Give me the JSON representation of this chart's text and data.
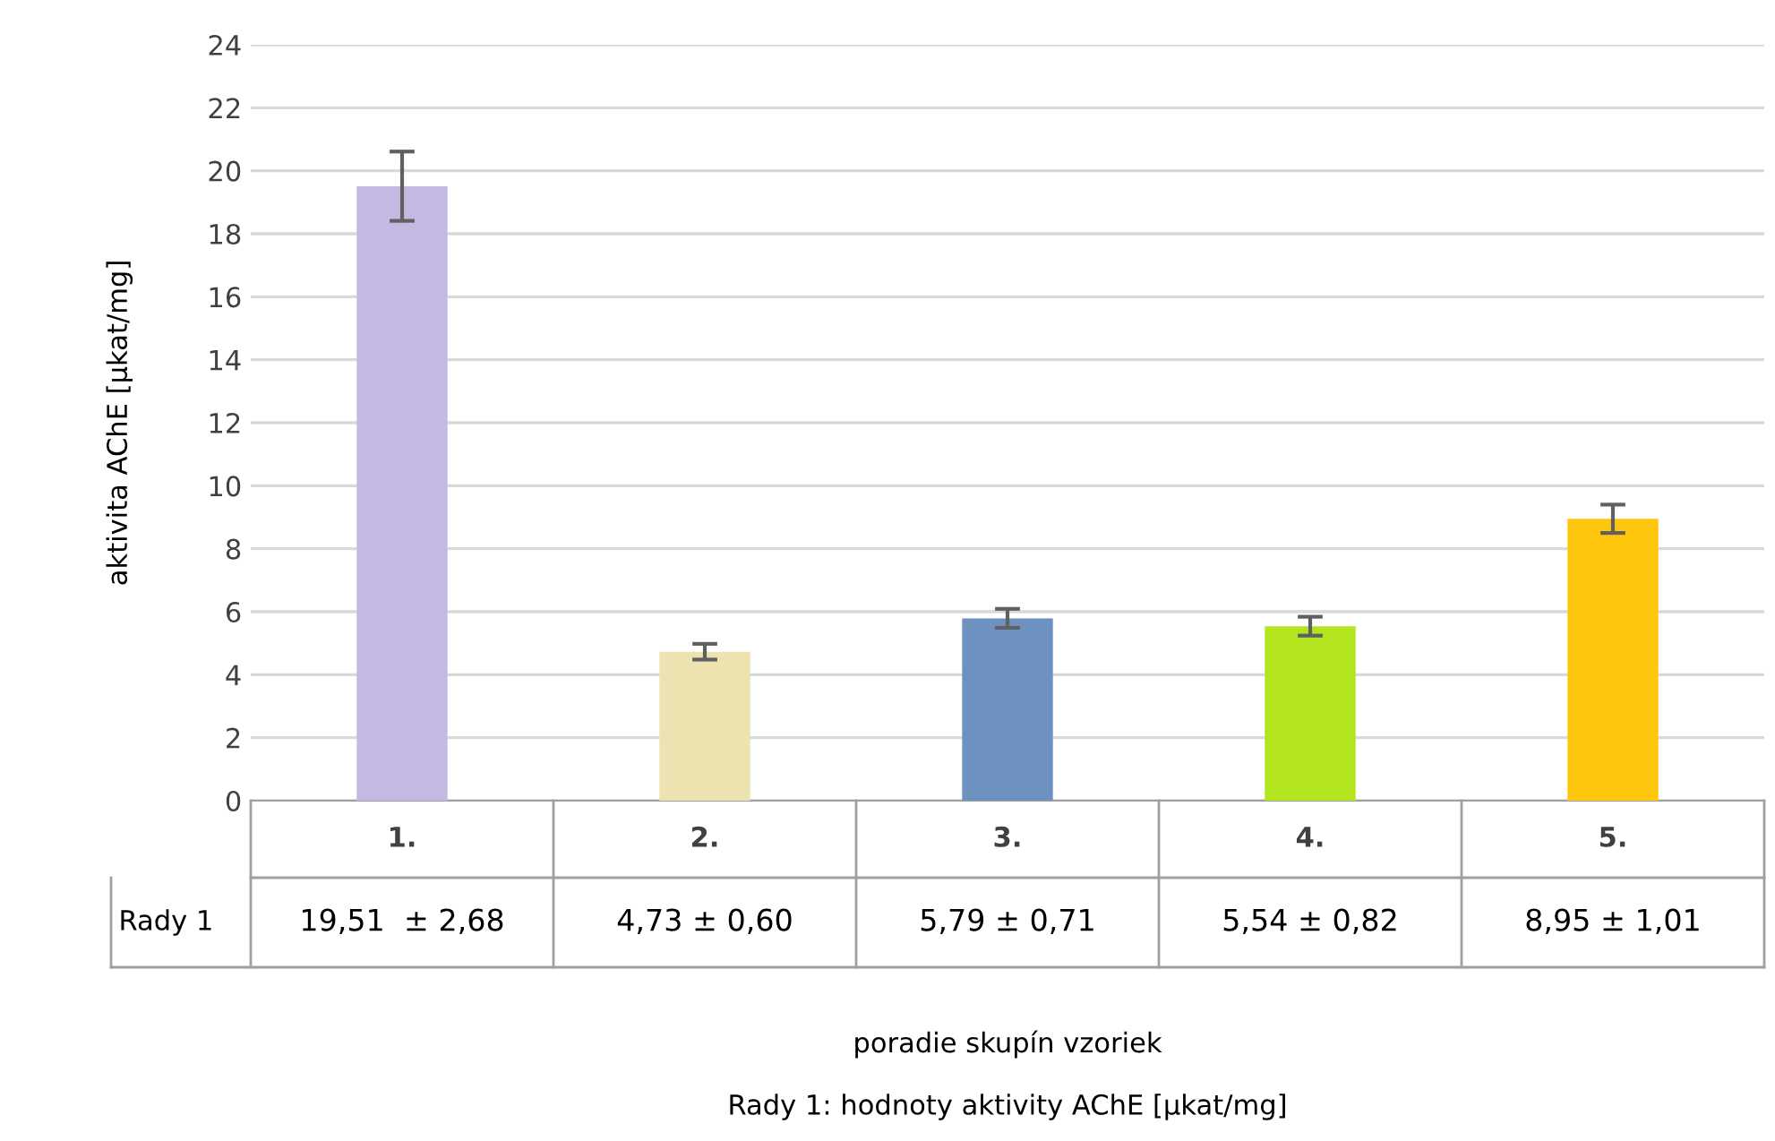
{
  "chart_data": {
    "type": "bar",
    "ylabel": "aktivita AChE [µkat/mg]",
    "categories": [
      "1.",
      "2.",
      "3.",
      "4.",
      "5."
    ],
    "series": [
      {
        "name": "Rady 1",
        "values": [
          19.51,
          4.73,
          5.79,
          5.54,
          8.95
        ],
        "colors": [
          "#c3b9e3",
          "#ede3b0",
          "#6e92bf",
          "#b3e51e",
          "#fec60c"
        ],
        "errors": [
          1.1,
          0.25,
          0.3,
          0.3,
          0.45
        ],
        "value_labels": [
          "19,51  ± 2,68",
          "4,73 ± 0,60",
          "5,79 ± 0,71",
          "5,54 ± 0,82",
          "8,95 ± 1,01"
        ]
      }
    ],
    "ylim": [
      0,
      24
    ],
    "yticks": [
      0,
      2,
      4,
      6,
      8,
      10,
      12,
      14,
      16,
      18,
      20,
      22,
      24
    ],
    "grid": "y",
    "annotations": [
      "poradie skupín vzoriek",
      "Rady 1: hodnoty aktivity AChE [µkat/mg]"
    ]
  }
}
